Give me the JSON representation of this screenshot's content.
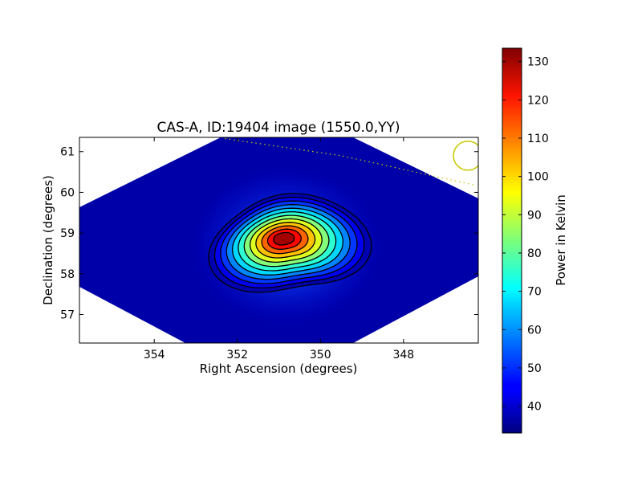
{
  "chart_data": {
    "type": "heatmap",
    "title": "CAS-A, ID:19404 image (1550.0,YY)",
    "xlabel": "Right Ascension (degrees)",
    "ylabel": "Declination (degrees)",
    "xlim": [
      355.8,
      346.2
    ],
    "ylim": [
      56.3,
      61.35
    ],
    "x_ticks": [
      354,
      352,
      350,
      348
    ],
    "y_ticks": [
      57,
      58,
      59,
      60,
      61
    ],
    "x_inverted": true,
    "grid": false,
    "colorbar": {
      "label": "Power in Kelvin",
      "range": [
        33,
        133.5
      ],
      "ticks": [
        40,
        50,
        60,
        70,
        80,
        90,
        100,
        110,
        120,
        130
      ],
      "colormap": "jet"
    },
    "background_level": 38,
    "source": {
      "name": "CAS-A",
      "peak_ra": 350.9,
      "peak_dec": 58.88,
      "peak_value": 130
    },
    "contours": {
      "color": "#000000",
      "count": 12
    },
    "beam_marker": {
      "ra": 346.45,
      "dec": 60.9,
      "color": "#c8c800"
    },
    "dotted_track": {
      "color": "#c8c800",
      "points": [
        [
          352.3,
          61.32
        ],
        [
          349.5,
          60.9
        ],
        [
          347.5,
          60.45
        ],
        [
          346.3,
          60.18
        ]
      ]
    }
  }
}
